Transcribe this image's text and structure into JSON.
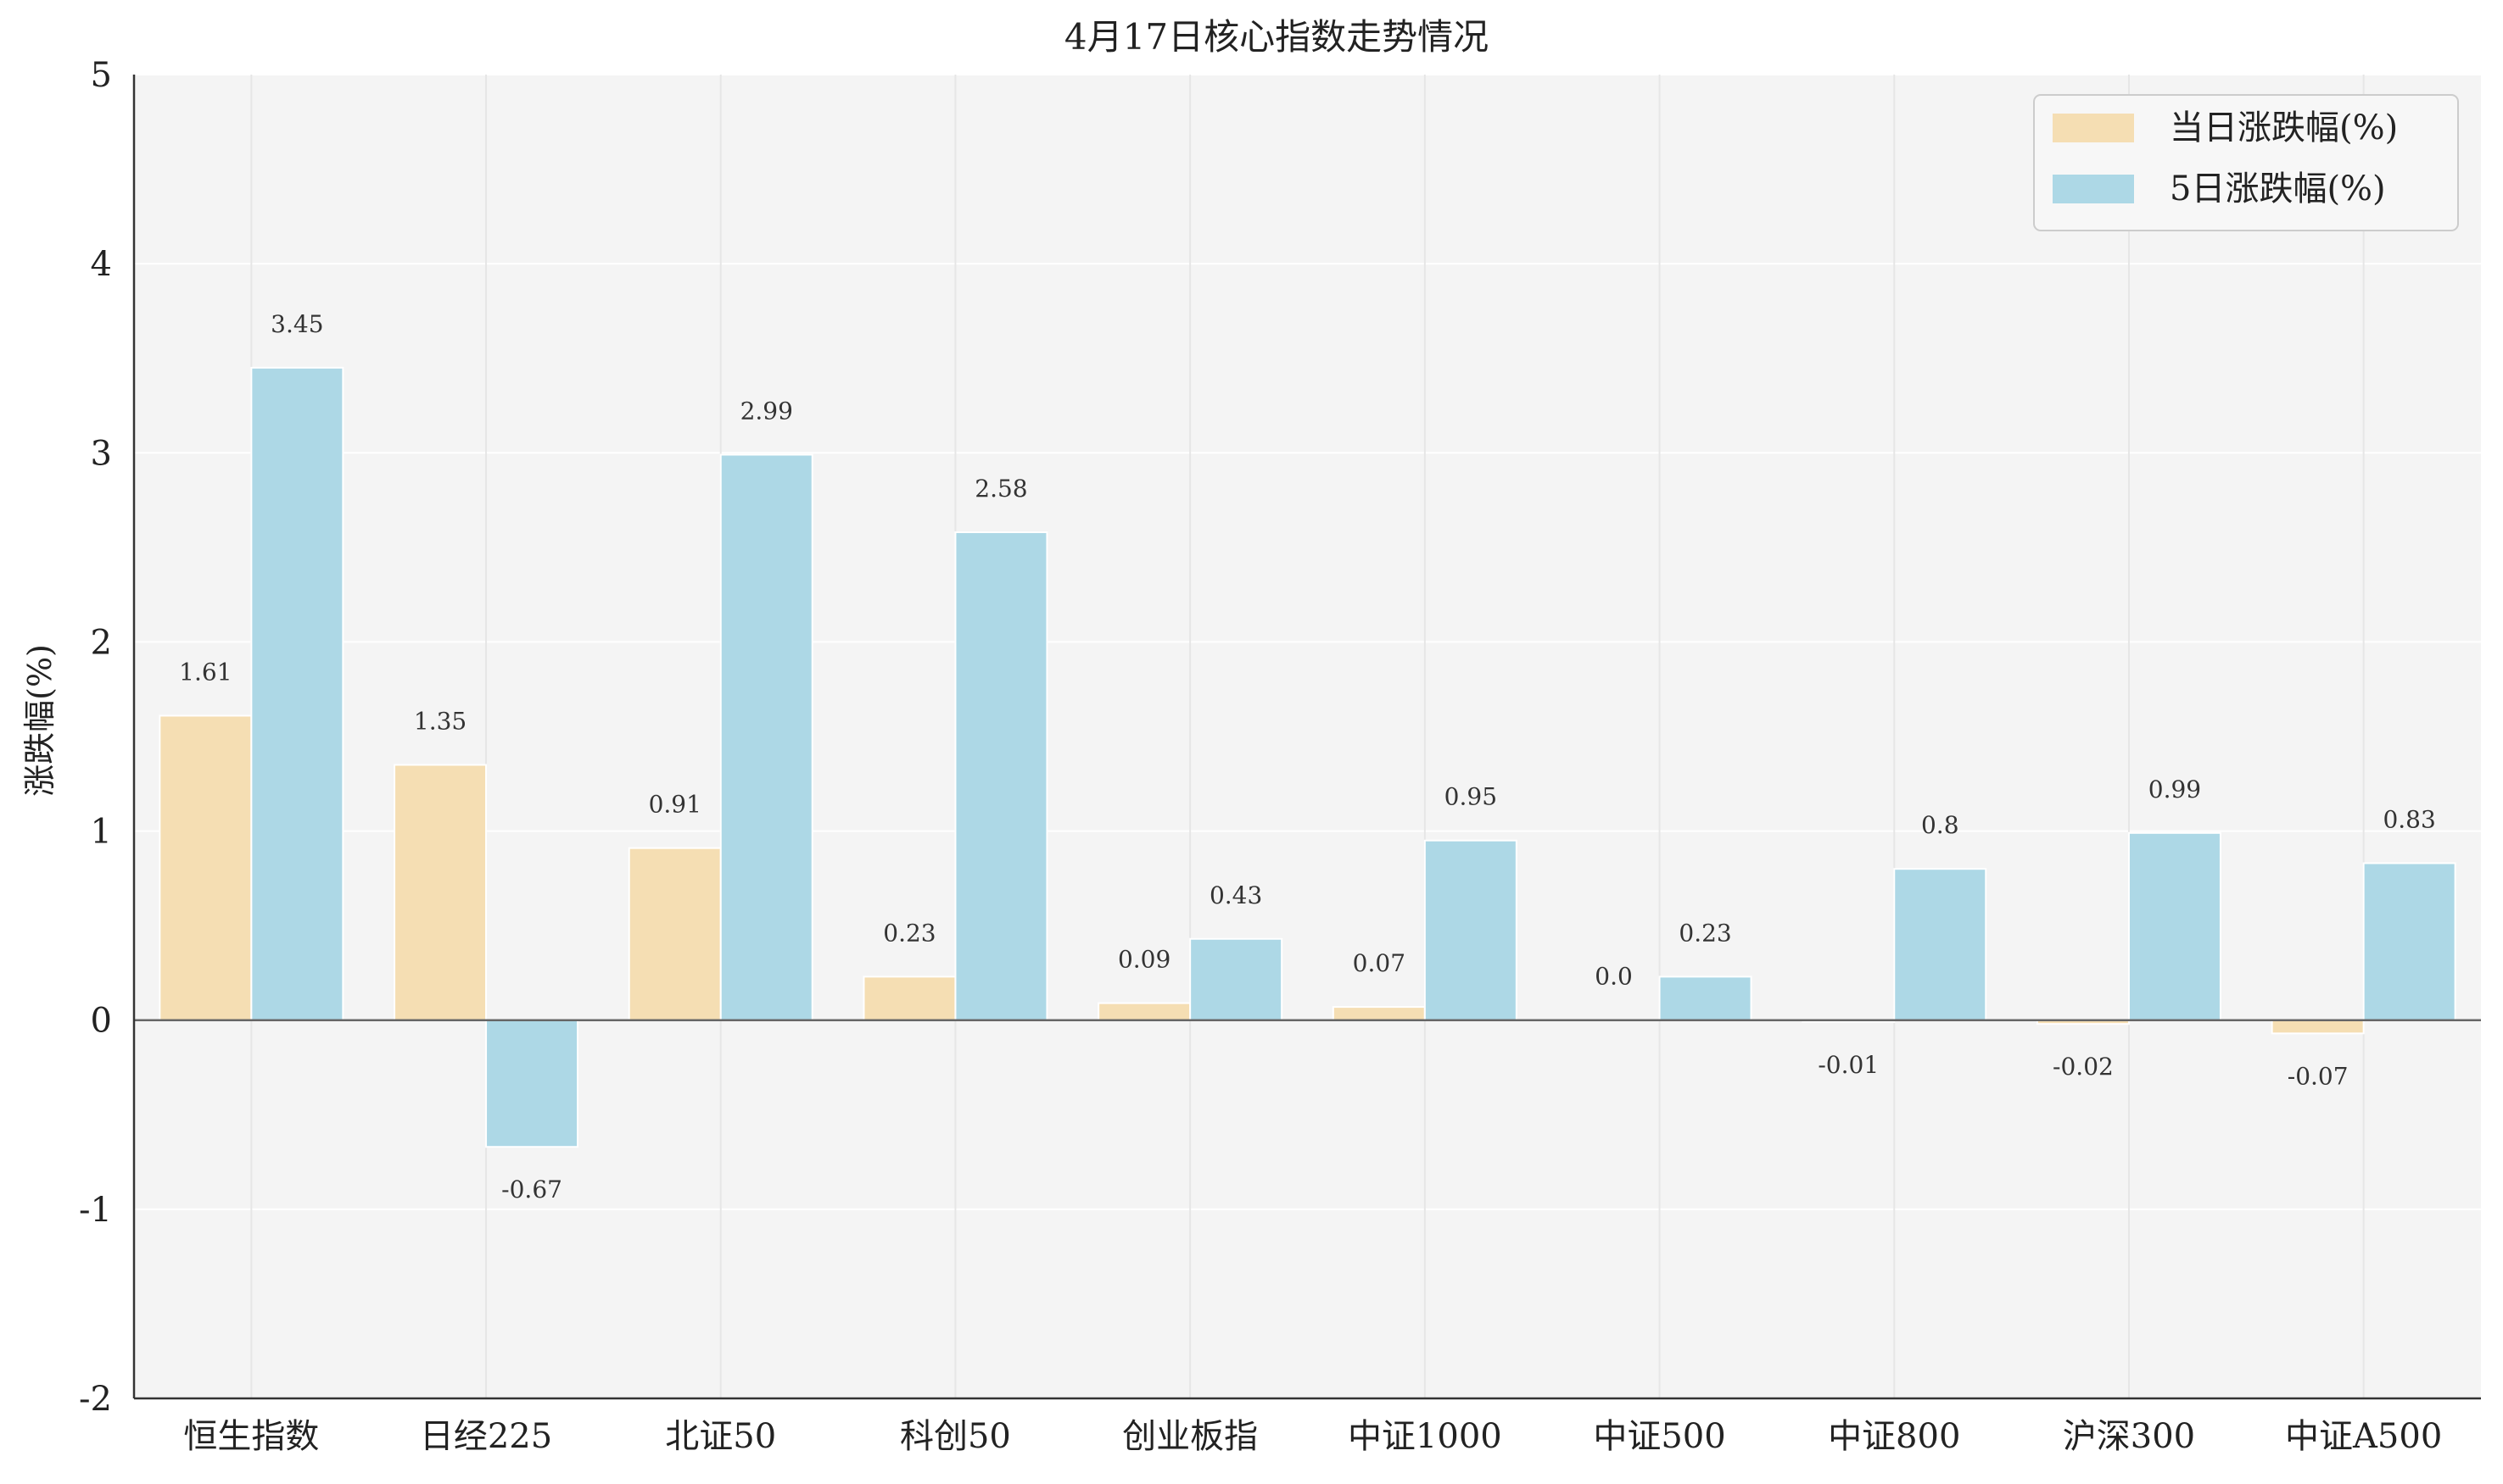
{
  "chart_data": {
    "type": "bar",
    "title": "4月17日核心指数走势情况",
    "xlabel": "",
    "ylabel": "涨跌幅(%)",
    "ylim": [
      -2,
      5
    ],
    "yticks": [
      "5",
      "4",
      "3",
      "2",
      "1",
      "0",
      "-1",
      "-2"
    ],
    "grid": true,
    "legend_position": "top-right",
    "categories": [
      "恒生指数",
      "日经225",
      "北证50",
      "科创50",
      "创业板指",
      "中证1000",
      "中证500",
      "中证800",
      "沪深300",
      "中证A500"
    ],
    "series": [
      {
        "name": "当日涨跌幅(%)",
        "color": "#f5deb3",
        "values": [
          1.61,
          1.35,
          0.91,
          0.23,
          0.09,
          0.07,
          0.0,
          -0.01,
          -0.02,
          -0.07
        ],
        "labels": [
          "1.61",
          "1.35",
          "0.91",
          "0.23",
          "0.09",
          "0.07",
          "0.0",
          "-0.01",
          "-0.02",
          "-0.07"
        ]
      },
      {
        "name": "5日涨跌幅(%)",
        "color": "#add8e6",
        "values": [
          3.45,
          -0.67,
          2.99,
          2.58,
          0.43,
          0.95,
          0.23,
          0.8,
          0.99,
          0.83
        ],
        "labels": [
          "3.45",
          "-0.67",
          "2.99",
          "2.58",
          "0.43",
          "0.95",
          "0.23",
          "0.8",
          "0.99",
          "0.83"
        ]
      }
    ],
    "colors": {
      "plot_bg": "#f4f4f4",
      "grid": "#ffffff",
      "axis": "#333333"
    }
  }
}
